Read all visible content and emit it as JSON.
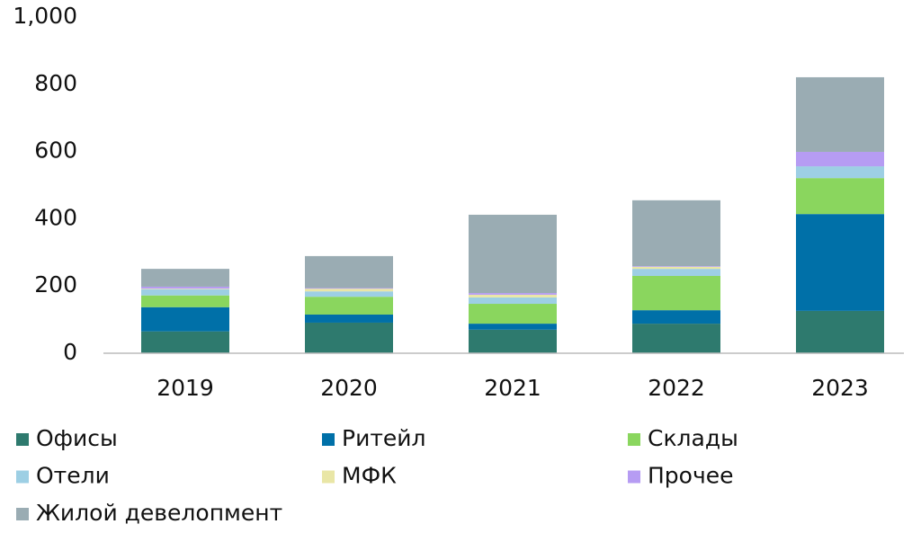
{
  "chart_data": {
    "type": "stacked_bar",
    "categories": [
      "2019",
      "2020",
      "2021",
      "2022",
      "2023"
    ],
    "series": [
      {
        "name": "Офисы",
        "color": "#2e7a6e",
        "values": [
          65,
          91,
          70,
          88,
          126
        ]
      },
      {
        "name": "Ритейл",
        "color": "#0070a8",
        "values": [
          72,
          24,
          18,
          40,
          288
        ]
      },
      {
        "name": "Склады",
        "color": "#8ad65e",
        "values": [
          35,
          53,
          59,
          102,
          107
        ]
      },
      {
        "name": "Отели",
        "color": "#9dcfe4",
        "values": [
          18,
          16,
          19,
          21,
          35
        ]
      },
      {
        "name": "МФК",
        "color": "#e9e6a6",
        "values": [
          2,
          8,
          8,
          6,
          0
        ]
      },
      {
        "name": "Прочее",
        "color": "#b69cf3",
        "values": [
          6,
          2,
          5,
          2,
          43
        ]
      },
      {
        "name": "Жилой девелопмент",
        "color": "#9aacb3",
        "values": [
          53,
          95,
          233,
          196,
          222
        ]
      }
    ],
    "ylim": [
      0,
      1000
    ],
    "yticks": [
      0,
      200,
      400,
      600,
      800,
      {
        "value": 1000,
        "label": "1,000"
      }
    ],
    "grid": false
  }
}
